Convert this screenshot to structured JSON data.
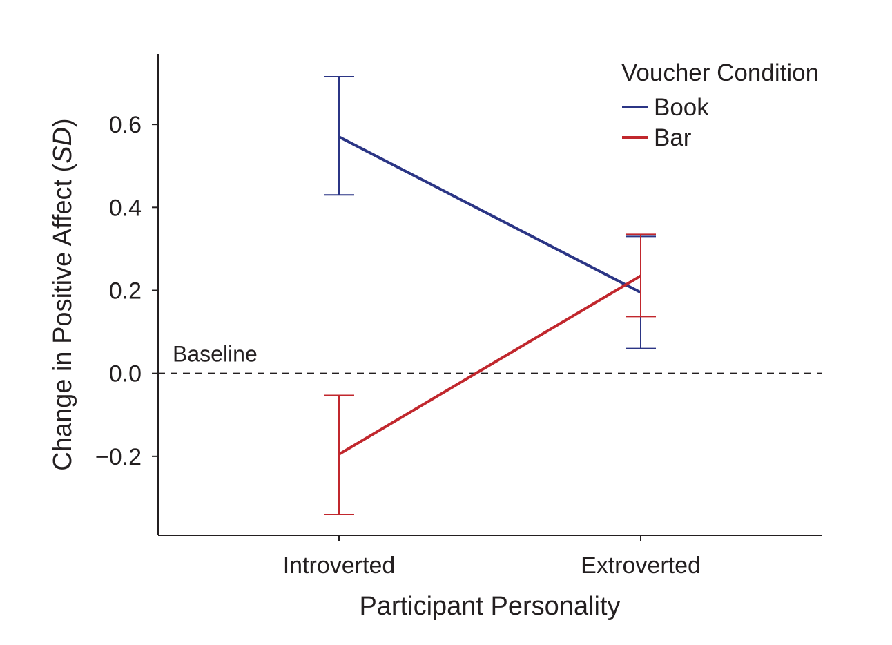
{
  "chart_data": {
    "type": "line",
    "xlabel": "Participant Personality",
    "ylabel_prefix": "Change in Positive Affect (",
    "ylabel_italic": "SD",
    "ylabel_suffix": ")",
    "categories": [
      "Introverted",
      "Extroverted"
    ],
    "ylim": [
      -0.39,
      0.77
    ],
    "yticks": [
      -0.2,
      0.0,
      0.2,
      0.4,
      0.6
    ],
    "ytick_labels": [
      "−0.2",
      "0.0",
      "0.2",
      "0.4",
      "0.6"
    ],
    "baseline": {
      "value": 0.0,
      "label": "Baseline",
      "style": "dashed"
    },
    "legend": {
      "title": "Voucher Condition",
      "position": "top-right"
    },
    "series": [
      {
        "name": "Book",
        "color": "#2b3585",
        "values": [
          0.57,
          0.195
        ],
        "err_low": [
          0.43,
          0.06
        ],
        "err_high": [
          0.715,
          0.33
        ]
      },
      {
        "name": "Bar",
        "color": "#c1272d",
        "values": [
          -0.195,
          0.235
        ],
        "err_low": [
          -0.34,
          0.137
        ],
        "err_high": [
          -0.053,
          0.335
        ]
      }
    ]
  }
}
